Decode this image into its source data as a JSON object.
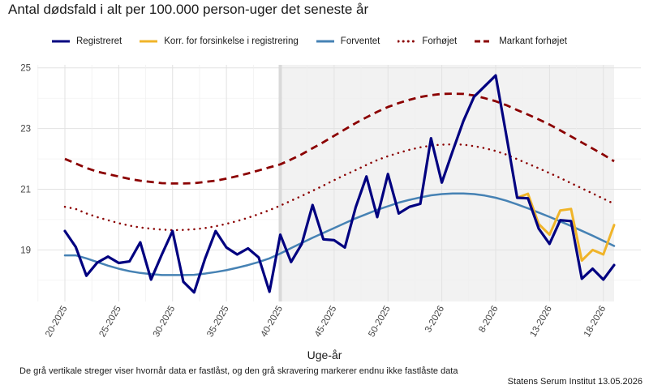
{
  "chart_data": {
    "type": "line",
    "title": "Antal dødsfald i alt per 100.000 person-uger det seneste år",
    "xlabel": "Uge-år",
    "ylabel": "",
    "ylim": [
      17.3,
      25.1
    ],
    "y_ticks": [
      19,
      21,
      23,
      25
    ],
    "grid": true,
    "legend": "top",
    "x": [
      "20-2025",
      "21-2025",
      "22-2025",
      "23-2025",
      "24-2025",
      "25-2025",
      "26-2025",
      "27-2025",
      "28-2025",
      "29-2025",
      "30-2025",
      "31-2025",
      "32-2025",
      "33-2025",
      "34-2025",
      "35-2025",
      "36-2025",
      "37-2025",
      "38-2025",
      "39-2025",
      "40-2025",
      "41-2025",
      "42-2025",
      "43-2025",
      "44-2025",
      "45-2025",
      "46-2025",
      "47-2025",
      "48-2025",
      "49-2025",
      "50-2025",
      "51-2025",
      "52-2025",
      "1-2026",
      "2-2026",
      "3-2026",
      "4-2026",
      "5-2026",
      "6-2026",
      "7-2026",
      "8-2026",
      "9-2026",
      "10-2026",
      "11-2026",
      "12-2026",
      "13-2026",
      "14-2026",
      "15-2026",
      "16-2026",
      "17-2026",
      "18-2026",
      "19-2026"
    ],
    "x_tick_labels": [
      "20-2025",
      "25-2025",
      "30-2025",
      "35-2025",
      "40-2025",
      "45-2025",
      "50-2025",
      "3-2026",
      "8-2026",
      "13-2026",
      "18-2026"
    ],
    "locked_line_week": "40-2025",
    "shaded_from_week": "40-2025",
    "series": [
      {
        "name": "Registreret",
        "color": "#000080",
        "values": [
          19.62,
          19.1,
          18.15,
          18.58,
          18.78,
          18.57,
          18.62,
          19.25,
          18.02,
          18.85,
          19.62,
          17.95,
          17.6,
          18.7,
          19.62,
          19.08,
          18.85,
          19.05,
          18.75,
          17.62,
          19.5,
          18.6,
          19.2,
          20.48,
          19.35,
          19.32,
          19.08,
          20.4,
          21.42,
          20.08,
          21.5,
          20.2,
          20.42,
          20.52,
          22.68,
          21.22,
          22.25,
          23.25,
          24.05,
          24.4,
          24.75,
          22.75,
          20.72,
          20.7,
          19.7,
          19.2,
          19.98,
          19.95,
          18.05,
          18.38,
          18.02,
          18.5
        ]
      },
      {
        "name": "Korr. for forsinkelse i registrering",
        "color": "#f0b429",
        "values": [
          null,
          null,
          null,
          null,
          null,
          null,
          null,
          null,
          null,
          null,
          null,
          null,
          null,
          null,
          null,
          null,
          null,
          null,
          null,
          null,
          null,
          null,
          null,
          null,
          null,
          null,
          null,
          null,
          null,
          null,
          null,
          null,
          null,
          null,
          null,
          null,
          null,
          null,
          null,
          null,
          null,
          null,
          20.72,
          20.85,
          19.85,
          19.5,
          20.3,
          20.35,
          18.65,
          19.0,
          18.85,
          19.82
        ]
      },
      {
        "name": "Forventet",
        "color": "#4682b4",
        "values": [
          18.82,
          18.82,
          18.72,
          18.6,
          18.48,
          18.38,
          18.3,
          18.24,
          18.2,
          18.17,
          18.17,
          18.17,
          18.18,
          18.22,
          18.27,
          18.33,
          18.41,
          18.5,
          18.6,
          18.72,
          18.88,
          19.06,
          19.23,
          19.4,
          19.56,
          19.72,
          19.88,
          20.04,
          20.18,
          20.32,
          20.44,
          20.56,
          20.65,
          20.73,
          20.8,
          20.84,
          20.86,
          20.86,
          20.84,
          20.79,
          20.72,
          20.62,
          20.5,
          20.37,
          20.23,
          20.09,
          19.94,
          19.79,
          19.63,
          19.47,
          19.3,
          19.13
        ]
      },
      {
        "name": "Forhøjet",
        "color": "#8b0000",
        "values": [
          20.42,
          20.35,
          20.2,
          20.08,
          19.98,
          19.88,
          19.8,
          19.74,
          19.7,
          19.67,
          19.65,
          19.66,
          19.68,
          19.72,
          19.78,
          19.86,
          19.95,
          20.06,
          20.18,
          20.31,
          20.46,
          20.62,
          20.78,
          20.95,
          21.12,
          21.3,
          21.47,
          21.63,
          21.8,
          21.96,
          22.09,
          22.2,
          22.3,
          22.38,
          22.44,
          22.47,
          22.48,
          22.47,
          22.42,
          22.35,
          22.26,
          22.14,
          21.99,
          21.84,
          21.69,
          21.53,
          21.37,
          21.2,
          21.03,
          20.86,
          20.69,
          20.52
        ]
      },
      {
        "name": "Markant forhøjet",
        "color": "#8b0000",
        "values": [
          22.0,
          21.85,
          21.7,
          21.58,
          21.5,
          21.42,
          21.34,
          21.28,
          21.24,
          21.2,
          21.19,
          21.19,
          21.2,
          21.24,
          21.28,
          21.35,
          21.43,
          21.52,
          21.62,
          21.72,
          21.82,
          21.98,
          22.15,
          22.35,
          22.55,
          22.76,
          22.97,
          23.18,
          23.37,
          23.55,
          23.71,
          23.84,
          23.95,
          24.04,
          24.1,
          24.14,
          24.15,
          24.14,
          24.09,
          24.0,
          23.9,
          23.77,
          23.61,
          23.46,
          23.3,
          23.13,
          22.94,
          22.74,
          22.54,
          22.34,
          22.14,
          21.92
        ]
      }
    ]
  },
  "caption": "De grå vertikale streger viser hvornår data er fastlåst, og den grå skravering markerer endnu ikke fastlåste data",
  "source": "Statens Serum Institut  13.05.2026"
}
